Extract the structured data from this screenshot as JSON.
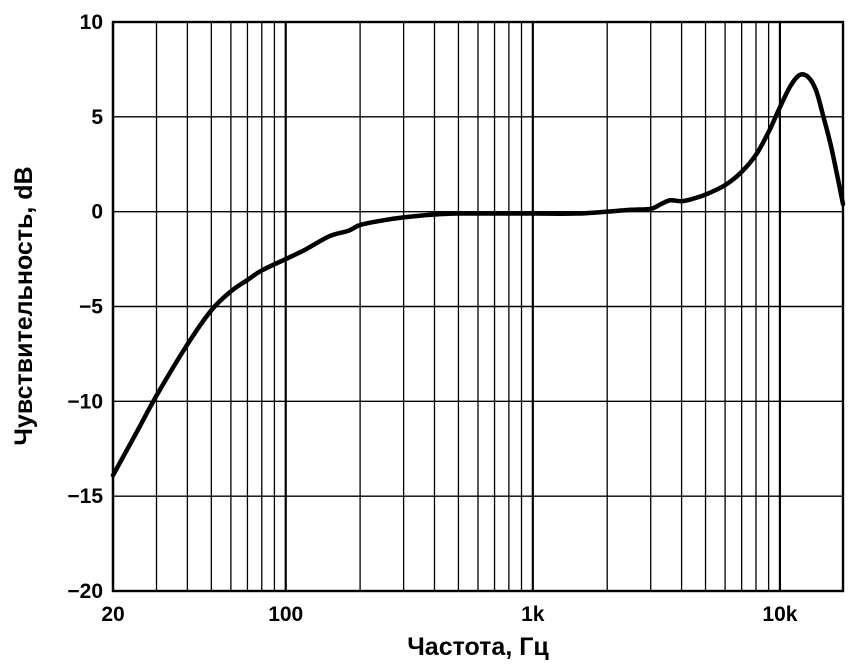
{
  "chart_data": {
    "type": "line",
    "title": "",
    "xlabel": "Частота, Гц",
    "ylabel": "Чувствительность, dB",
    "x_scale": "log",
    "xlim": [
      20,
      18000
    ],
    "ylim": [
      -20,
      10
    ],
    "grid": true,
    "legend": "none",
    "x_tick_values": [
      20,
      100,
      1000,
      10000
    ],
    "x_tick_labels": [
      "20",
      "100",
      "1k",
      "10k"
    ],
    "y_tick_values": [
      10,
      5,
      0,
      -5,
      -10,
      -15,
      -20
    ],
    "y_tick_labels": [
      "10",
      "5",
      "0",
      "−5",
      "−10",
      "−15",
      "−20"
    ],
    "series": [
      {
        "color": "#000000",
        "x": [
          20,
          25,
          30,
          40,
          50,
          60,
          70,
          80,
          100,
          120,
          150,
          180,
          200,
          250,
          300,
          400,
          500,
          700,
          1000,
          1500,
          2000,
          2500,
          3000,
          3300,
          3600,
          4000,
          4500,
          5000,
          6000,
          7000,
          8000,
          9000,
          10000,
          11000,
          12000,
          13000,
          14000,
          15000,
          16000,
          17000,
          18000
        ],
        "y": [
          -13.9,
          -11.6,
          -9.7,
          -7.0,
          -5.2,
          -4.2,
          -3.6,
          -3.1,
          -2.5,
          -2.0,
          -1.3,
          -1.0,
          -0.7,
          -0.45,
          -0.3,
          -0.15,
          -0.1,
          -0.1,
          -0.1,
          -0.1,
          0.0,
          0.1,
          0.15,
          0.4,
          0.6,
          0.55,
          0.7,
          0.9,
          1.4,
          2.1,
          3.0,
          4.2,
          5.5,
          6.6,
          7.2,
          7.1,
          6.4,
          5.0,
          3.6,
          2.0,
          0.4
        ]
      }
    ]
  }
}
